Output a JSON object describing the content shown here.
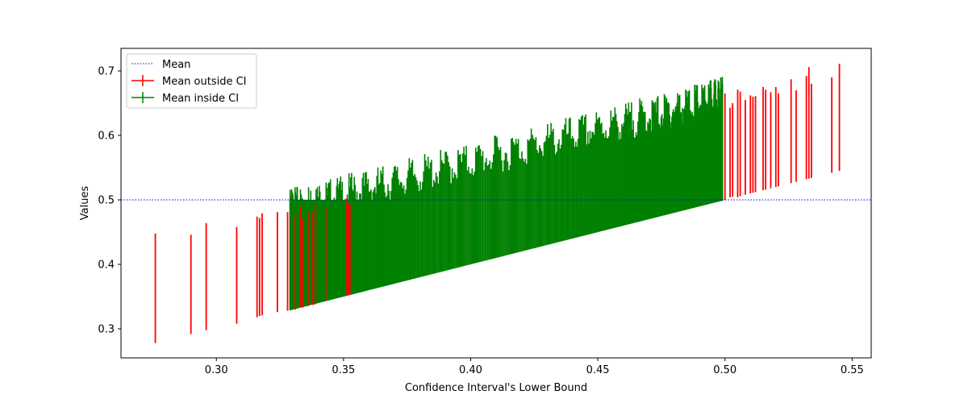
{
  "chart_data": {
    "type": "errorbar",
    "title": "",
    "xlabel": "Confidence Interval's Lower Bound",
    "ylabel": "Values",
    "xlim": [
      0.2625,
      0.5575
    ],
    "ylim": [
      0.255,
      0.735
    ],
    "x_ticks": [
      0.3,
      0.35,
      0.4,
      0.45,
      0.5,
      0.55
    ],
    "x_tick_labels": [
      "0.30",
      "0.35",
      "0.40",
      "0.45",
      "0.50",
      "0.55"
    ],
    "y_ticks": [
      0.3,
      0.4,
      0.5,
      0.6,
      0.7
    ],
    "y_tick_labels": [
      "0.3",
      "0.4",
      "0.5",
      "0.6",
      "0.7"
    ],
    "grid": false,
    "legend_position": "top-left",
    "reference_line": {
      "name": "Mean",
      "y": 0.5,
      "style": "dotted",
      "color": "#0000ff"
    },
    "series": [
      {
        "name": "Mean outside CI",
        "color": "#ff0000",
        "intervals": [
          [
            0.276,
            0.278,
            0.448
          ],
          [
            0.29,
            0.292,
            0.446
          ],
          [
            0.296,
            0.298,
            0.464
          ],
          [
            0.308,
            0.308,
            0.458
          ],
          [
            0.316,
            0.318,
            0.474
          ],
          [
            0.317,
            0.32,
            0.472
          ],
          [
            0.318,
            0.321,
            0.479
          ],
          [
            0.324,
            0.326,
            0.481
          ],
          [
            0.328,
            0.328,
            0.481
          ],
          [
            0.331,
            0.33,
            0.476
          ],
          [
            0.333,
            0.333,
            0.49
          ],
          [
            0.334,
            0.333,
            0.47
          ],
          [
            0.336,
            0.335,
            0.482
          ],
          [
            0.338,
            0.337,
            0.481
          ],
          [
            0.339,
            0.338,
            0.493
          ],
          [
            0.343,
            0.344,
            0.487
          ],
          [
            0.351,
            0.352,
            0.502
          ],
          [
            0.352,
            0.352,
            0.494
          ],
          [
            0.353,
            0.353,
            0.492
          ],
          [
            0.5,
            0.5,
            0.665
          ],
          [
            0.502,
            0.504,
            0.643
          ],
          [
            0.503,
            0.505,
            0.65
          ],
          [
            0.505,
            0.504,
            0.671
          ],
          [
            0.506,
            0.506,
            0.668
          ],
          [
            0.508,
            0.508,
            0.655
          ],
          [
            0.51,
            0.51,
            0.662
          ],
          [
            0.511,
            0.511,
            0.66
          ],
          [
            0.512,
            0.512,
            0.661
          ],
          [
            0.515,
            0.515,
            0.675
          ],
          [
            0.516,
            0.516,
            0.671
          ],
          [
            0.518,
            0.518,
            0.667
          ],
          [
            0.52,
            0.52,
            0.675
          ],
          [
            0.521,
            0.521,
            0.665
          ],
          [
            0.526,
            0.526,
            0.687
          ],
          [
            0.528,
            0.528,
            0.67
          ],
          [
            0.532,
            0.532,
            0.692
          ],
          [
            0.533,
            0.533,
            0.706
          ],
          [
            0.534,
            0.534,
            0.68
          ],
          [
            0.542,
            0.542,
            0.69
          ],
          [
            0.545,
            0.545,
            0.711
          ]
        ]
      },
      {
        "name": "Mean inside CI",
        "color": "#008000",
        "x_range": [
          0.329,
          0.499
        ],
        "lower_range": [
          0.329,
          0.499
        ],
        "upper_range": [
          0.503,
          0.676
        ],
        "count": 560
      }
    ]
  },
  "legend": {
    "items": [
      {
        "label": "Mean"
      },
      {
        "label": "Mean outside CI"
      },
      {
        "label": "Mean inside CI"
      }
    ]
  }
}
